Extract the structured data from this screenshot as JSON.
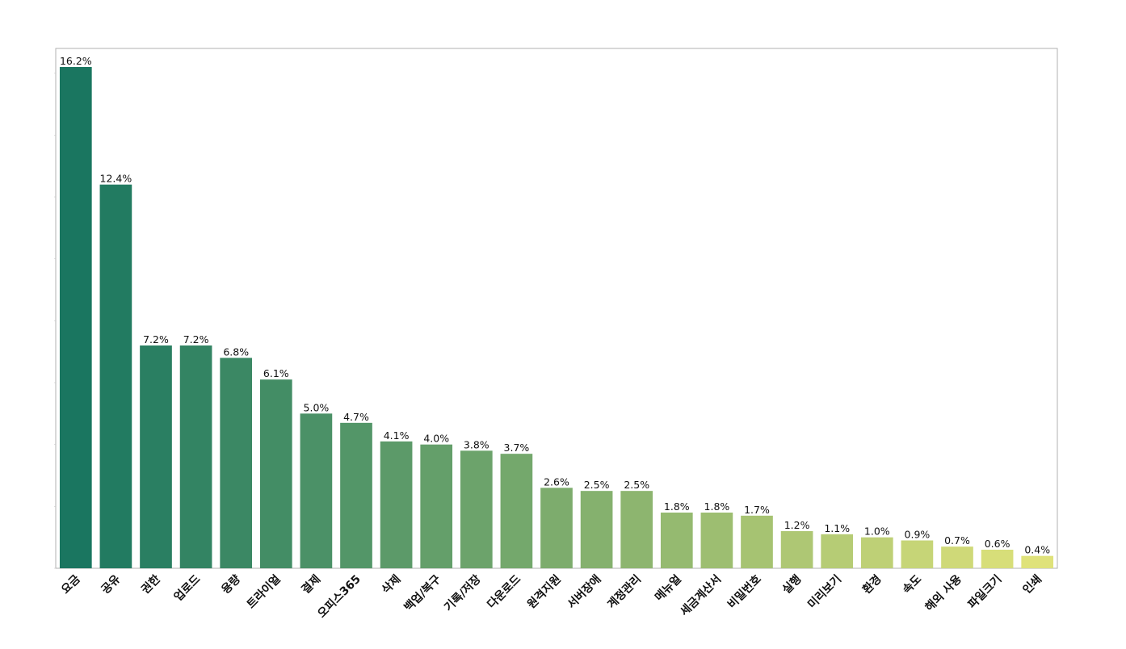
{
  "chart_data": {
    "type": "bar",
    "title": "",
    "xlabel": "",
    "ylabel": "",
    "ylim": [
      0,
      16.8
    ],
    "grid": false,
    "legend": "none",
    "value_suffix": "%",
    "categories": [
      "요금",
      "공유",
      "권한",
      "업로드",
      "용량",
      "트라이얼",
      "결제",
      "오피스365",
      "삭제",
      "백업/복구",
      "기록/저장",
      "다운로드",
      "원격지원",
      "서버장애",
      "계정관리",
      "메뉴얼",
      "세금계산서",
      "비밀번호",
      "실행",
      "미리보기",
      "환경",
      "속도",
      "해외 사용",
      "파일크기",
      "인쇄"
    ],
    "values": [
      16.2,
      12.4,
      7.2,
      7.2,
      6.8,
      6.1,
      5.0,
      4.7,
      4.1,
      4.0,
      3.8,
      3.7,
      2.6,
      2.5,
      2.5,
      1.8,
      1.8,
      1.7,
      1.2,
      1.1,
      1.0,
      0.9,
      0.7,
      0.6,
      0.4
    ],
    "value_labels": [
      "16.2%",
      "12.4%",
      "7.2%",
      "7.2%",
      "6.8%",
      "6.1%",
      "5.0%",
      "4.7%",
      "4.1%",
      "4.0%",
      "3.8%",
      "3.7%",
      "2.6%",
      "2.5%",
      "2.5%",
      "1.8%",
      "1.8%",
      "1.7%",
      "1.2%",
      "1.1%",
      "1.0%",
      "0.9%",
      "0.7%",
      "0.6%",
      "0.4%"
    ],
    "palette": {
      "start": "#1a7660",
      "end": "#dfe27a"
    },
    "frame_color": "#b0b0b0"
  }
}
